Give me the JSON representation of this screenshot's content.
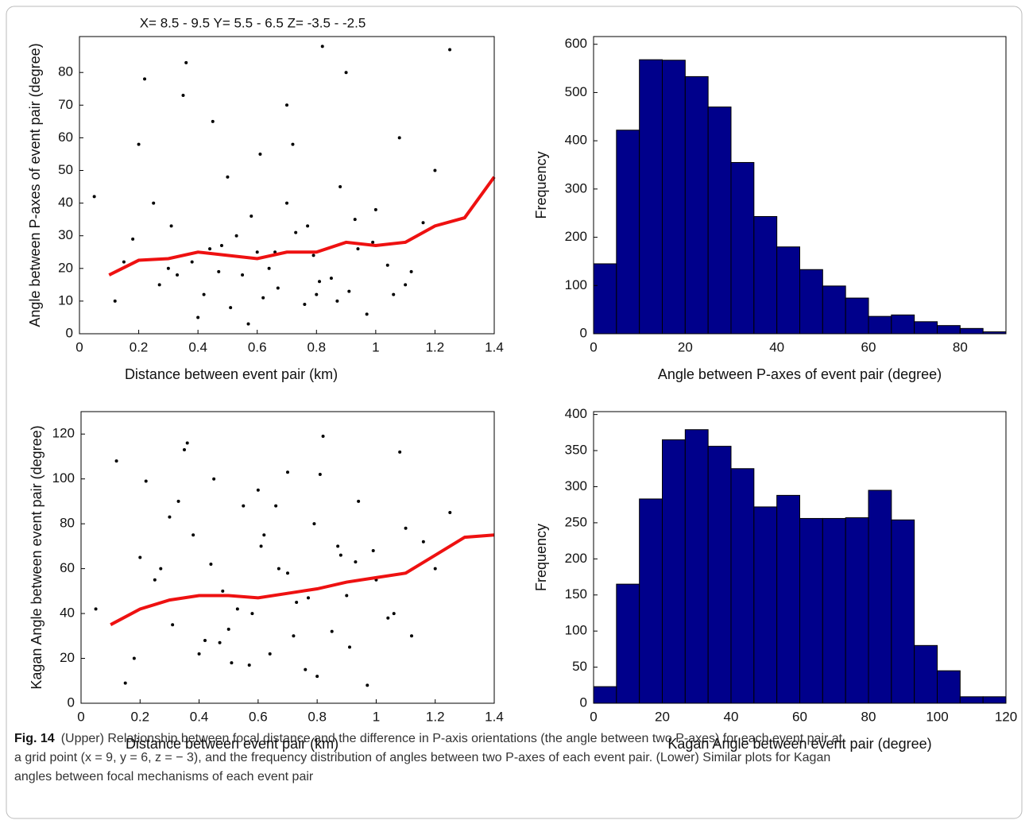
{
  "charts": [
    {
      "type": "scatter",
      "title": "X= 8.5 - 9.5 Y= 5.5 - 6.5 Z= -3.5 - -2.5",
      "x_label": "Distance between event pair (km)",
      "y_label": "Angle between P-axes of event pair (degree)",
      "xlim": [
        0,
        1.4
      ],
      "ylim": [
        0,
        91
      ],
      "xticks": [
        0,
        0.2,
        0.4,
        0.6,
        0.8,
        1,
        1.2,
        1.4
      ],
      "yticks": [
        0,
        10,
        20,
        30,
        40,
        50,
        60,
        70,
        80
      ],
      "points": {
        "color": "#000000",
        "x": [
          0.05,
          0.12,
          0.18,
          0.22,
          0.27,
          0.31,
          0.35,
          0.38,
          0.42,
          0.45,
          0.48,
          0.51,
          0.55,
          0.58,
          0.61,
          0.64,
          0.67,
          0.7,
          0.73,
          0.76,
          0.79,
          0.82,
          0.85,
          0.88,
          0.91,
          0.94,
          0.97,
          1.0,
          1.04,
          1.08,
          1.12,
          1.16,
          1.2,
          1.25,
          0.15,
          0.25,
          0.33,
          0.44,
          0.53,
          0.62,
          0.72,
          0.81,
          0.9,
          0.99,
          1.1,
          0.4,
          0.5,
          0.6,
          0.7,
          0.8,
          0.3,
          0.2,
          0.57,
          0.66,
          0.77,
          0.87,
          0.36,
          0.47,
          1.06,
          0.93
        ],
        "y": [
          42,
          10,
          29,
          78,
          15,
          33,
          73,
          22,
          12,
          65,
          27,
          8,
          18,
          36,
          55,
          20,
          14,
          70,
          31,
          9,
          24,
          88,
          17,
          45,
          13,
          26,
          6,
          38,
          21,
          60,
          19,
          34,
          50,
          87,
          22,
          40,
          18,
          26,
          30,
          11,
          58,
          16,
          80,
          28,
          15,
          5,
          48,
          25,
          40,
          12,
          20,
          58,
          3,
          25,
          33,
          10,
          83,
          19,
          12,
          35
        ]
      },
      "trend": {
        "color": "#ee1111",
        "x": [
          0.1,
          0.2,
          0.3,
          0.4,
          0.5,
          0.6,
          0.7,
          0.8,
          0.9,
          1.0,
          1.1,
          1.2,
          1.3,
          1.4
        ],
        "y": [
          18,
          22.5,
          23,
          25,
          24,
          23,
          25,
          25,
          28,
          27,
          28,
          33,
          35.5,
          48
        ]
      }
    },
    {
      "type": "histogram",
      "x_label": "Angle between P-axes of event pair (degree)",
      "y_label": "Frequency",
      "xlim": [
        0,
        90
      ],
      "ylim": [
        0,
        616
      ],
      "xticks": [
        0,
        20,
        40,
        60,
        80
      ],
      "yticks": [
        0,
        100,
        200,
        300,
        400,
        500,
        600
      ],
      "color": "#00008b",
      "bins": [
        0,
        5,
        10,
        15,
        20,
        25,
        30,
        35,
        40,
        45,
        50,
        55,
        60,
        65,
        70,
        75,
        80,
        85,
        90
      ],
      "counts": [
        145,
        422,
        568,
        567,
        533,
        470,
        355,
        243,
        180,
        133,
        99,
        74,
        36,
        39,
        25,
        17,
        11,
        4
      ]
    },
    {
      "type": "scatter",
      "x_label": "Distance between event pair (km)",
      "y_label": "Kagan Angle between event pair (degree)",
      "xlim": [
        0,
        1.4
      ],
      "ylim": [
        0,
        130
      ],
      "xticks": [
        0,
        0.2,
        0.4,
        0.6,
        0.8,
        1,
        1.2,
        1.4
      ],
      "yticks": [
        0,
        20,
        40,
        60,
        80,
        100,
        120
      ],
      "points": {
        "color": "#000000",
        "x": [
          0.05,
          0.12,
          0.18,
          0.22,
          0.27,
          0.31,
          0.35,
          0.38,
          0.42,
          0.45,
          0.48,
          0.51,
          0.55,
          0.58,
          0.61,
          0.64,
          0.67,
          0.7,
          0.73,
          0.76,
          0.79,
          0.82,
          0.85,
          0.88,
          0.91,
          0.94,
          0.97,
          1.0,
          1.04,
          1.08,
          1.12,
          1.16,
          1.2,
          1.25,
          0.15,
          0.25,
          0.33,
          0.44,
          0.53,
          0.62,
          0.72,
          0.81,
          0.9,
          0.99,
          1.1,
          0.4,
          0.5,
          0.6,
          0.7,
          0.8,
          0.3,
          0.2,
          0.57,
          0.66,
          0.77,
          0.87,
          0.36,
          0.47,
          1.06,
          0.93
        ],
        "y": [
          42,
          108,
          20,
          99,
          60,
          35,
          113,
          75,
          28,
          100,
          50,
          18,
          88,
          40,
          70,
          22,
          60,
          103,
          45,
          15,
          80,
          119,
          32,
          66,
          25,
          90,
          8,
          55,
          38,
          112,
          30,
          72,
          60,
          85,
          9,
          55,
          90,
          62,
          42,
          75,
          30,
          102,
          48,
          68,
          78,
          22,
          33,
          95,
          58,
          12,
          83,
          65,
          17,
          88,
          47,
          70,
          116,
          27,
          40,
          63
        ]
      },
      "trend": {
        "color": "#ee1111",
        "x": [
          0.1,
          0.2,
          0.3,
          0.4,
          0.5,
          0.6,
          0.7,
          0.8,
          0.9,
          1.0,
          1.1,
          1.2,
          1.3,
          1.4
        ],
        "y": [
          35,
          42,
          46,
          48,
          48,
          47,
          49,
          51,
          54,
          56,
          58,
          66,
          74,
          75
        ]
      }
    },
    {
      "type": "histogram",
      "x_label": "Kagan Angle between  event pair (degree)",
      "y_label": "Frequency",
      "xlim": [
        0,
        120
      ],
      "ylim": [
        0,
        404
      ],
      "xticks": [
        0,
        20,
        40,
        60,
        80,
        100,
        120
      ],
      "yticks": [
        0,
        50,
        100,
        150,
        200,
        250,
        300,
        350,
        400
      ],
      "color": "#00008b",
      "bins": [
        0,
        6.667,
        13.333,
        20,
        26.667,
        33.333,
        40,
        46.667,
        53.333,
        60,
        66.667,
        73.333,
        80,
        86.667,
        93.333,
        100,
        106.667,
        113.333,
        120
      ],
      "counts": [
        23,
        165,
        283,
        365,
        379,
        356,
        325,
        272,
        288,
        256,
        256,
        257,
        295,
        254,
        80,
        45,
        9,
        9
      ]
    }
  ],
  "caption": {
    "label": "Fig. 14",
    "lines": [
      "(Upper) Relationship between focal distance and the difference in P-axis orientations (the angle between two P-axes) for each event pair at",
      "a grid point (x = 9, y = 6, z = − 3), and the frequency distribution of angles between two P-axes of each event pair. (Lower) Similar plots for Kagan",
      "angles between focal mechanisms of each event pair"
    ]
  }
}
